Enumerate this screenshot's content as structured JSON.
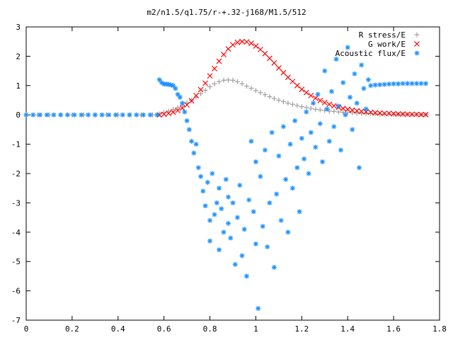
{
  "chart_data": {
    "type": "scatter",
    "title": "m2/n1.5/q1.75/r-+.32-j168/M1.5/512",
    "xlabel": "",
    "ylabel": "",
    "xlim": [
      0,
      1.8
    ],
    "ylim": [
      -7,
      3
    ],
    "x_ticks": [
      "0",
      "0.2",
      "0.4",
      "0.6",
      "0.8",
      "1",
      "1.2",
      "1.4",
      "1.6",
      "1.8"
    ],
    "y_ticks": [
      "3",
      "2",
      "1",
      "0",
      "-1",
      "-2",
      "-3",
      "-4",
      "-5",
      "-6",
      "-7"
    ],
    "grid": false,
    "legend_position": "top-right",
    "series": [
      {
        "name": "R stress/E",
        "marker": "plus",
        "color": "#a0a0a0",
        "x": [
          0,
          0.05,
          0.1,
          0.15,
          0.2,
          0.25,
          0.3,
          0.35,
          0.4,
          0.45,
          0.5,
          0.55,
          0.58,
          0.6,
          0.62,
          0.64,
          0.66,
          0.68,
          0.7,
          0.72,
          0.74,
          0.76,
          0.78,
          0.8,
          0.82,
          0.84,
          0.86,
          0.88,
          0.9,
          0.92,
          0.94,
          0.96,
          0.98,
          1.0,
          1.02,
          1.04,
          1.06,
          1.08,
          1.1,
          1.12,
          1.14,
          1.16,
          1.18,
          1.2,
          1.22,
          1.24,
          1.26,
          1.28,
          1.3,
          1.32,
          1.34,
          1.36,
          1.38,
          1.4,
          1.42,
          1.44,
          1.46,
          1.48,
          1.5,
          1.52,
          1.54,
          1.56,
          1.58,
          1.6,
          1.62,
          1.64,
          1.66,
          1.68,
          1.7,
          1.72,
          1.74
        ],
        "y": [
          0,
          0,
          0,
          0,
          0,
          0,
          0,
          0,
          0,
          0,
          0,
          0,
          0.03,
          0.08,
          0.13,
          0.19,
          0.25,
          0.33,
          0.41,
          0.5,
          0.6,
          0.72,
          0.84,
          0.96,
          1.06,
          1.13,
          1.18,
          1.19,
          1.18,
          1.13,
          1.06,
          0.98,
          0.91,
          0.83,
          0.76,
          0.69,
          0.62,
          0.56,
          0.5,
          0.45,
          0.4,
          0.36,
          0.32,
          0.28,
          0.25,
          0.22,
          0.19,
          0.17,
          0.15,
          0.13,
          0.12,
          0.1,
          0.09,
          0.08,
          0.07,
          0.06,
          0.05,
          0.05,
          0.04,
          0.04,
          0.03,
          0.03,
          0.03,
          0.02,
          0.02,
          0.02,
          0.02,
          0.01,
          0.01,
          0.01,
          0.01
        ]
      },
      {
        "name": "G work/E",
        "marker": "cross",
        "color": "#ff0000",
        "x": [
          0.58,
          0.6,
          0.62,
          0.64,
          0.66,
          0.68,
          0.7,
          0.72,
          0.74,
          0.76,
          0.78,
          0.8,
          0.82,
          0.84,
          0.86,
          0.88,
          0.9,
          0.92,
          0.94,
          0.96,
          0.98,
          1.0,
          1.02,
          1.04,
          1.06,
          1.08,
          1.1,
          1.12,
          1.14,
          1.16,
          1.18,
          1.2,
          1.22,
          1.24,
          1.26,
          1.28,
          1.3,
          1.32,
          1.34,
          1.36,
          1.38,
          1.4,
          1.42,
          1.44,
          1.46,
          1.48,
          1.5,
          1.52,
          1.54,
          1.56,
          1.58,
          1.6,
          1.62,
          1.64,
          1.66,
          1.68,
          1.7,
          1.72,
          1.74
        ],
        "y": [
          0,
          0.02,
          0.05,
          0.09,
          0.15,
          0.23,
          0.34,
          0.48,
          0.66,
          0.86,
          1.08,
          1.33,
          1.58,
          1.83,
          2.06,
          2.25,
          2.39,
          2.47,
          2.5,
          2.49,
          2.44,
          2.35,
          2.23,
          2.09,
          1.93,
          1.77,
          1.6,
          1.44,
          1.28,
          1.14,
          1.0,
          0.87,
          0.76,
          0.66,
          0.57,
          0.49,
          0.42,
          0.36,
          0.31,
          0.26,
          0.22,
          0.19,
          0.16,
          0.14,
          0.12,
          0.1,
          0.09,
          0.07,
          0.06,
          0.05,
          0.05,
          0.04,
          0.03,
          0.03,
          0.02,
          0.02,
          0.02,
          0.01,
          0.01
        ]
      },
      {
        "name": "Acoustic flux/E",
        "marker": "star",
        "color": "#1e90ff",
        "x": [
          0,
          0.03,
          0.06,
          0.09,
          0.12,
          0.15,
          0.18,
          0.21,
          0.24,
          0.27,
          0.3,
          0.33,
          0.36,
          0.39,
          0.42,
          0.45,
          0.48,
          0.51,
          0.54,
          0.57,
          0.58,
          0.59,
          0.6,
          0.61,
          0.62,
          0.63,
          0.64,
          0.65,
          0.66,
          0.67,
          0.68,
          0.69,
          0.7,
          0.71,
          0.72,
          0.73,
          0.74,
          0.75,
          0.76,
          0.77,
          0.78,
          0.79,
          0.8,
          0.8,
          0.81,
          0.82,
          0.83,
          0.84,
          0.84,
          0.85,
          0.86,
          0.87,
          0.88,
          0.88,
          0.89,
          0.9,
          0.91,
          0.92,
          0.93,
          0.94,
          0.95,
          0.96,
          0.97,
          0.98,
          0.99,
          1.0,
          1.0,
          1.01,
          1.02,
          1.03,
          1.04,
          1.05,
          1.06,
          1.07,
          1.08,
          1.09,
          1.1,
          1.11,
          1.12,
          1.13,
          1.14,
          1.15,
          1.16,
          1.17,
          1.18,
          1.19,
          1.2,
          1.21,
          1.22,
          1.23,
          1.24,
          1.25,
          1.26,
          1.27,
          1.28,
          1.29,
          1.3,
          1.31,
          1.32,
          1.33,
          1.34,
          1.35,
          1.36,
          1.37,
          1.38,
          1.39,
          1.4,
          1.41,
          1.42,
          1.43,
          1.44,
          1.45,
          1.46,
          1.47,
          1.48,
          1.49,
          1.5,
          1.52,
          1.54,
          1.56,
          1.58,
          1.6,
          1.62,
          1.64,
          1.66,
          1.68,
          1.7,
          1.72,
          1.74
        ],
        "y": [
          0,
          0,
          0,
          0,
          0,
          0,
          0,
          0,
          0,
          0,
          0,
          0,
          0,
          0,
          0,
          0,
          0,
          0,
          0,
          0,
          1.2,
          1.1,
          1.05,
          1.05,
          1.04,
          1.02,
          1.0,
          0.9,
          0.7,
          0.6,
          0.4,
          0.1,
          -0.2,
          -0.5,
          -0.9,
          -1.3,
          -1.0,
          -1.8,
          -2.1,
          -2.6,
          -3.1,
          -2.3,
          -3.6,
          -4.3,
          -2.0,
          -3.4,
          -3.0,
          -4.6,
          -2.5,
          -3.2,
          -4.0,
          -2.2,
          -3.7,
          -2.8,
          -4.2,
          -3.0,
          -5.1,
          -3.5,
          -2.4,
          -4.8,
          -3.9,
          -5.5,
          -2.9,
          -0.9,
          -3.3,
          -4.4,
          -1.6,
          -6.6,
          -2.1,
          -3.8,
          -1.2,
          -4.5,
          -3.0,
          -0.6,
          -5.2,
          -2.7,
          -1.4,
          -3.6,
          -0.4,
          -2.2,
          -4.0,
          -1.0,
          -2.5,
          -0.2,
          -1.8,
          -3.3,
          -0.8,
          -1.5,
          0.1,
          -2.0,
          -0.6,
          0.4,
          -1.1,
          0.7,
          -0.3,
          -1.6,
          1.5,
          0.2,
          -0.9,
          0.8,
          -0.4,
          1.9,
          0.3,
          -1.2,
          1.1,
          0.0,
          2.3,
          0.6,
          -0.5,
          1.4,
          0.4,
          -1.8,
          1.7,
          0.9,
          0.2,
          1.2,
          1.0,
          1.02,
          1.03,
          1.04,
          1.05,
          1.06,
          1.06,
          1.07,
          1.07,
          1.07,
          1.07,
          1.07,
          1.07
        ]
      }
    ]
  }
}
